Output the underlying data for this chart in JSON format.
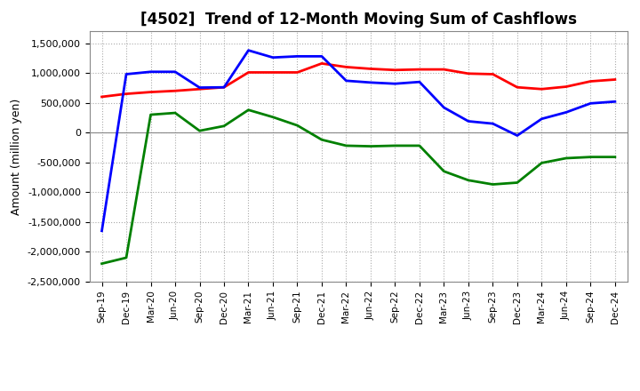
{
  "title": "[4502]  Trend of 12-Month Moving Sum of Cashflows",
  "ylabel": "Amount (million yen)",
  "ylim": [
    -2500000,
    1700000
  ],
  "yticks": [
    -2500000,
    -2000000,
    -1500000,
    -1000000,
    -500000,
    0,
    500000,
    1000000,
    1500000
  ],
  "x_labels": [
    "Sep-19",
    "Dec-19",
    "Mar-20",
    "Jun-20",
    "Sep-20",
    "Dec-20",
    "Mar-21",
    "Jun-21",
    "Sep-21",
    "Dec-21",
    "Mar-22",
    "Jun-22",
    "Sep-22",
    "Dec-22",
    "Mar-23",
    "Jun-23",
    "Sep-23",
    "Dec-23",
    "Mar-24",
    "Jun-24",
    "Sep-24",
    "Dec-24"
  ],
  "operating": [
    600000,
    650000,
    680000,
    700000,
    730000,
    760000,
    1010000,
    1010000,
    1010000,
    1160000,
    1100000,
    1070000,
    1050000,
    1060000,
    1060000,
    990000,
    980000,
    760000,
    730000,
    770000,
    860000,
    890000
  ],
  "investing": [
    -2200000,
    -2100000,
    300000,
    330000,
    30000,
    110000,
    380000,
    260000,
    120000,
    -120000,
    -220000,
    -230000,
    -220000,
    -220000,
    -650000,
    -800000,
    -870000,
    -840000,
    -510000,
    -430000,
    -410000,
    -410000
  ],
  "free": [
    -1650000,
    980000,
    1020000,
    1020000,
    755000,
    760000,
    1380000,
    1260000,
    1280000,
    1280000,
    870000,
    840000,
    820000,
    850000,
    420000,
    190000,
    150000,
    -50000,
    230000,
    340000,
    490000,
    520000
  ],
  "operating_color": "#FF0000",
  "investing_color": "#008000",
  "free_color": "#0000FF",
  "background_color": "#FFFFFF",
  "grid_color": "#AAAAAA",
  "linewidth": 2.0,
  "title_fontsize": 12,
  "ylabel_fontsize": 9,
  "tick_fontsize": 8,
  "xtick_fontsize": 7.5,
  "legend_fontsize": 9
}
